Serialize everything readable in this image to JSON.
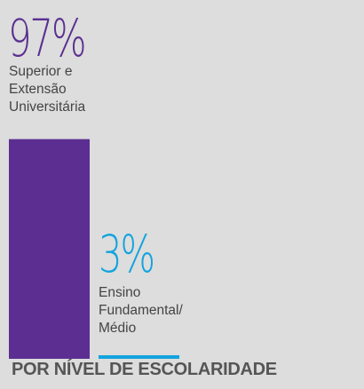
{
  "chart_data": {
    "type": "bar",
    "title": "POR NÍVEL DE ESCOLARIDADE",
    "categories": [
      [
        "Superior e",
        "Extensão",
        "Universitária"
      ],
      [
        "Ensino",
        "Fundamental/",
        "Médio"
      ]
    ],
    "values": [
      97,
      3
    ],
    "value_labels": [
      "97%",
      "3%"
    ],
    "colors": [
      "#5c2e91",
      "#12a3df"
    ]
  }
}
